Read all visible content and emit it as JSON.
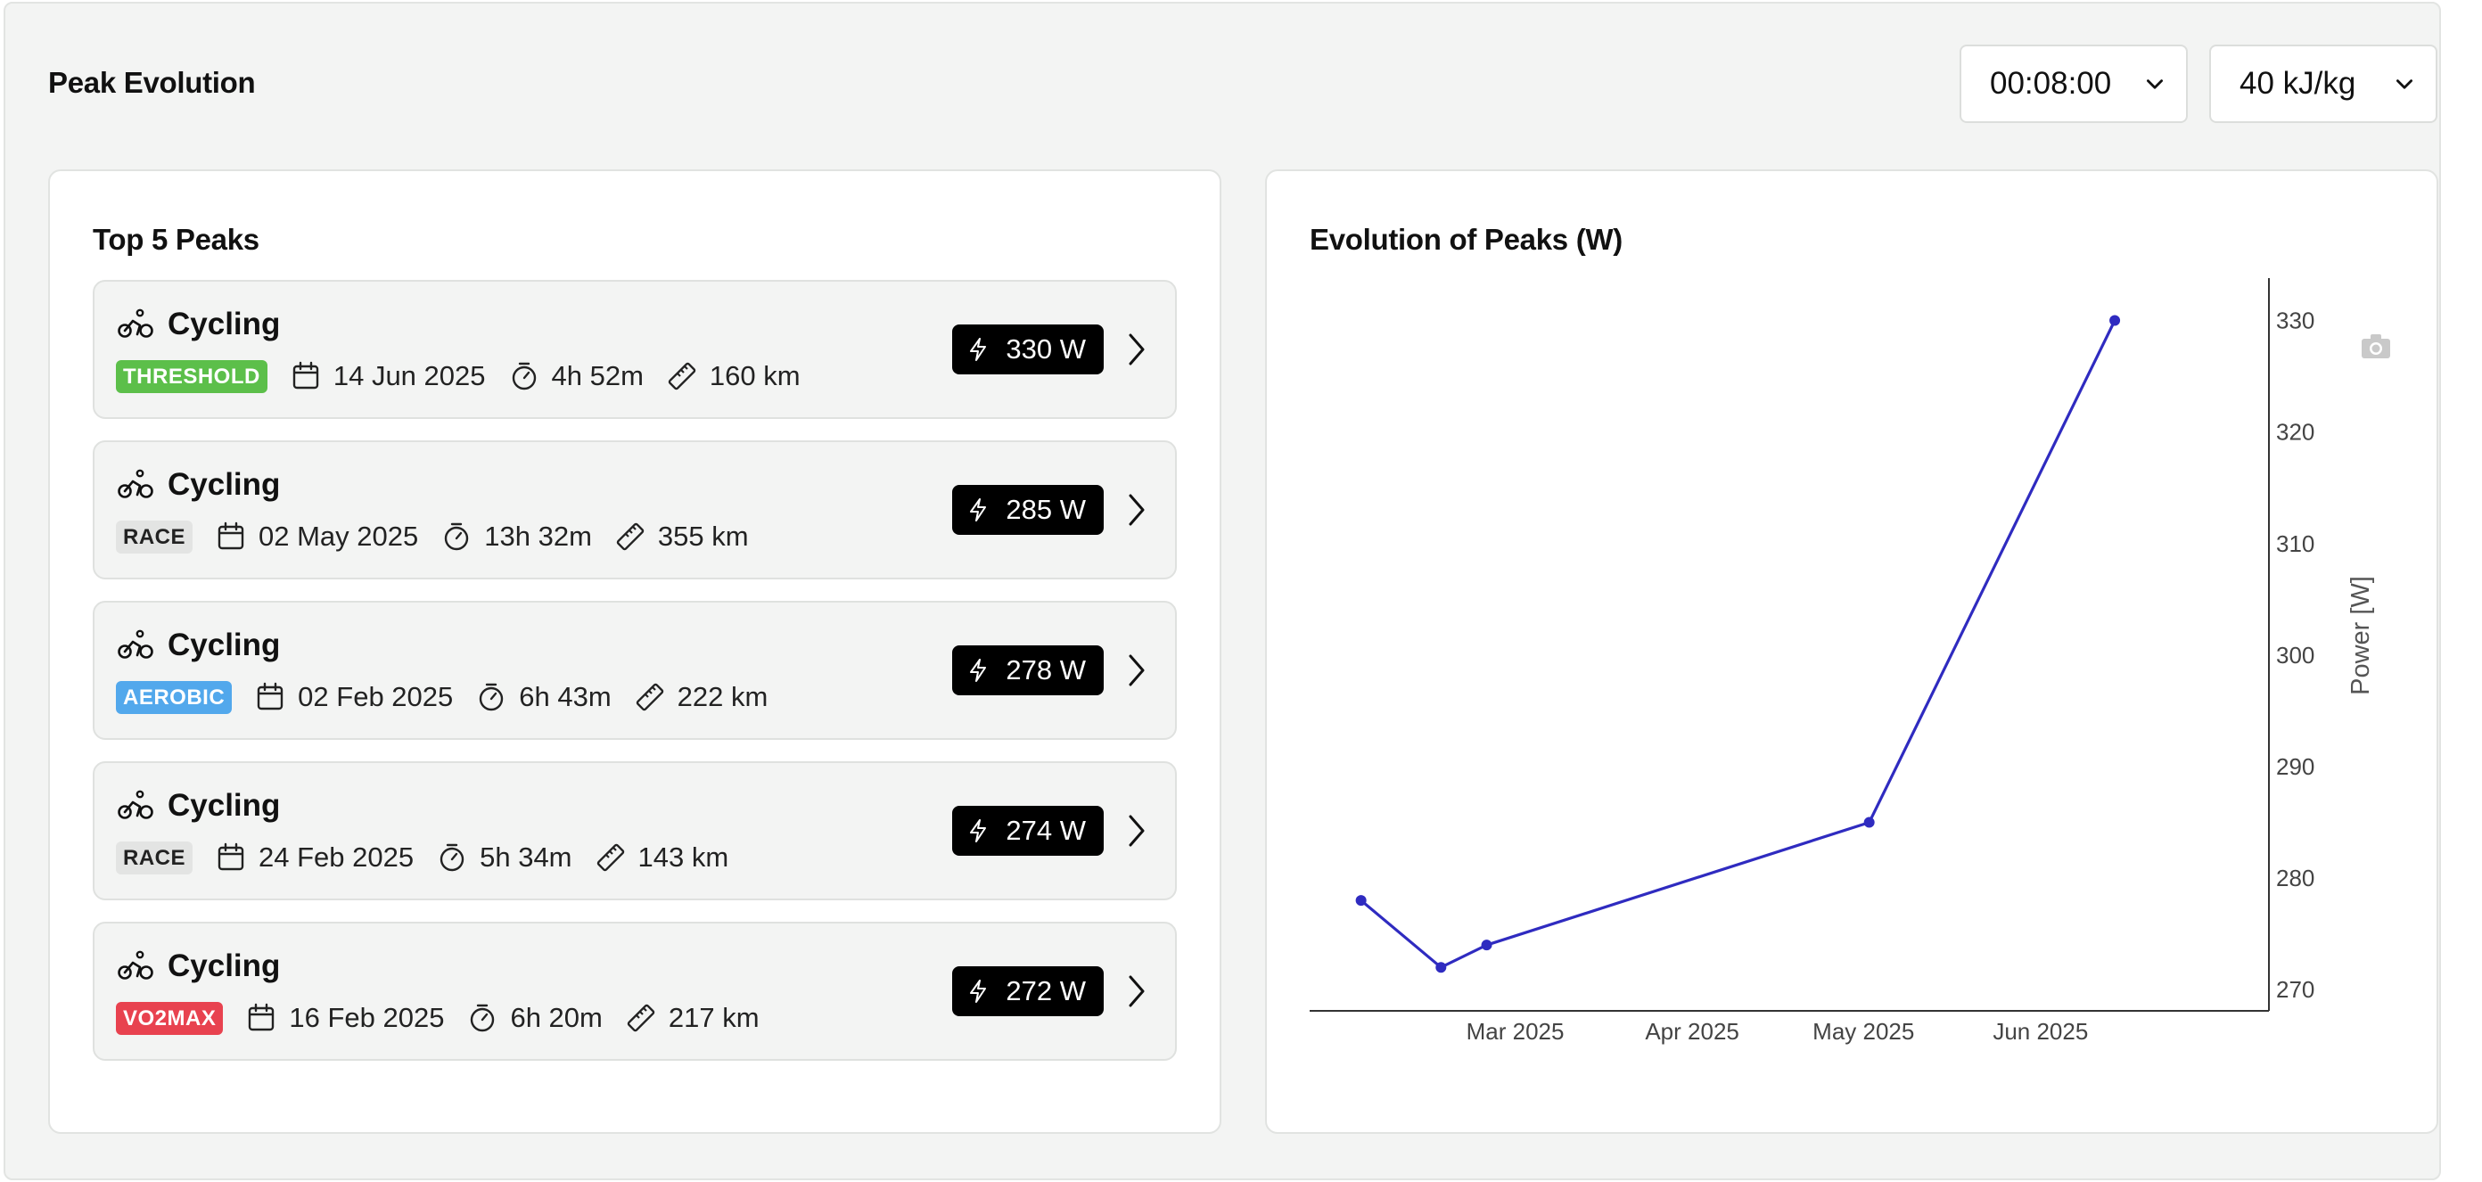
{
  "header": {
    "title": "Peak Evolution",
    "duration_select": "00:08:00",
    "energy_select": "40 kJ/kg"
  },
  "top_peaks": {
    "title": "Top 5 Peaks",
    "items": [
      {
        "sport": "Cycling",
        "badge": "THRESHOLD",
        "badge_color": "#5cbf4a",
        "date": "14 Jun 2025",
        "duration": "4h 52m",
        "distance": "160 km",
        "power": "330 W"
      },
      {
        "sport": "Cycling",
        "badge": "RACE",
        "badge_color": "#e3e4e3",
        "date": "02 May 2025",
        "duration": "13h 32m",
        "distance": "355 km",
        "power": "285 W"
      },
      {
        "sport": "Cycling",
        "badge": "AEROBIC",
        "badge_color": "#52a8ec",
        "date": "02 Feb 2025",
        "duration": "6h 43m",
        "distance": "222 km",
        "power": "278 W"
      },
      {
        "sport": "Cycling",
        "badge": "RACE",
        "badge_color": "#e3e4e3",
        "date": "24 Feb 2025",
        "duration": "5h 34m",
        "distance": "143 km",
        "power": "274 W"
      },
      {
        "sport": "Cycling",
        "badge": "VO2MAX",
        "badge_color": "#e8424f",
        "date": "16 Feb 2025",
        "duration": "6h 20m",
        "distance": "217 km",
        "power": "272 W"
      }
    ]
  },
  "chart_data": {
    "type": "line",
    "title": "Evolution of Peaks (W)",
    "xlabel": "",
    "ylabel": "Power [W]",
    "x": [
      "2025-02-02",
      "2025-02-16",
      "2025-02-24",
      "2025-05-02",
      "2025-06-14"
    ],
    "values": [
      278,
      272,
      274,
      285,
      330
    ],
    "x_ticks": [
      {
        "date": "2025-03-01",
        "label": "Mar 2025"
      },
      {
        "date": "2025-04-01",
        "label": "Apr 2025"
      },
      {
        "date": "2025-05-01",
        "label": "May 2025"
      },
      {
        "date": "2025-06-01",
        "label": "Jun 2025"
      }
    ],
    "y_ticks": [
      270,
      280,
      290,
      300,
      310,
      320,
      330
    ],
    "xlim": [
      "2025-01-24",
      "2025-07-11"
    ],
    "ylim": [
      268.1,
      333.8
    ],
    "y_axis_side": "right",
    "grid": false,
    "line_color": "#2f2bc0",
    "camera_icon": "camera-icon"
  }
}
